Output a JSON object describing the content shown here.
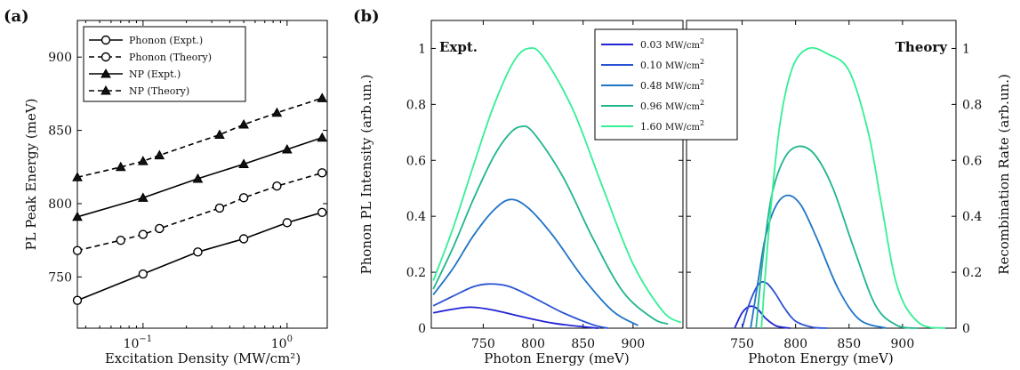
{
  "chart_data": [
    {
      "type": "line",
      "panel_label": "(a)",
      "xlabel": "Excitation Density (MW/cm²)",
      "ylabel": "PL Peak Energy (meV)",
      "xscale": "log",
      "xlim": [
        0.035,
        1.9
      ],
      "ylim": [
        715,
        925
      ],
      "xticks": [
        {
          "v": 0.1,
          "base": "10",
          "exp": "−1"
        },
        {
          "v": 1,
          "base": "10",
          "exp": "0"
        }
      ],
      "yticks": [
        750,
        800,
        850,
        900
      ],
      "legend_position": "top-left",
      "series": [
        {
          "name": "Phonon (Expt.)",
          "dash": false,
          "marker": "circle",
          "color": "#000000",
          "x": [
            0.035,
            0.1,
            0.24,
            0.5,
            1.0,
            1.75
          ],
          "y": [
            734,
            752,
            767,
            776,
            787,
            794
          ]
        },
        {
          "name": "Phonon (Theory)",
          "dash": true,
          "marker": "circle",
          "color": "#000000",
          "x": [
            0.035,
            0.07,
            0.1,
            0.13,
            0.34,
            0.5,
            0.85,
            1.75
          ],
          "y": [
            768,
            775,
            779,
            783,
            797,
            804,
            812,
            821
          ]
        },
        {
          "name": "NP (Expt.)",
          "dash": false,
          "marker": "triangle",
          "color": "#000000",
          "x": [
            0.035,
            0.1,
            0.24,
            0.5,
            1.0,
            1.75
          ],
          "y": [
            791,
            804,
            817,
            827,
            837,
            845
          ]
        },
        {
          "name": "NP (Theory)",
          "dash": true,
          "marker": "triangle",
          "color": "#000000",
          "x": [
            0.035,
            0.07,
            0.1,
            0.13,
            0.34,
            0.5,
            0.85,
            1.75
          ],
          "y": [
            818,
            825,
            829,
            833,
            847,
            854,
            862,
            872
          ]
        }
      ]
    },
    {
      "type": "line",
      "panel_label": "(b)",
      "xlabel_left": "Photon Energy (meV)",
      "xlabel_right": "Photon Energy (meV)",
      "ylabel_left": "Phonon PL Intensity (arb.un.)",
      "ylabel_right": "Recombination Rate (arb.un.)",
      "label_left": "Expt.",
      "label_right": "Theory",
      "left_xlim": [
        698,
        950
      ],
      "left_xticks": [
        750,
        800,
        850,
        900
      ],
      "right_xlim": [
        698,
        950
      ],
      "right_xticks": [
        750,
        800,
        850,
        900
      ],
      "ylim": [
        0,
        1.1
      ],
      "yticks": [
        0,
        0.2,
        0.4,
        0.6,
        0.8,
        1
      ],
      "ytick_labels": [
        "0",
        "0.2",
        "0.4",
        "0.6",
        "0.8",
        "1"
      ],
      "legend_position": "top-center",
      "legend": [
        {
          "num": "0.03",
          "unit": "MW/cm",
          "sup": "2",
          "color": "#2323d6"
        },
        {
          "num": "0.10",
          "unit": "MW/cm",
          "sup": "2",
          "color": "#2a52d4"
        },
        {
          "num": "0.48",
          "unit": "MW/cm",
          "sup": "2",
          "color": "#1f74c6"
        },
        {
          "num": "0.96",
          "unit": "MW/cm",
          "sup": "2",
          "color": "#1fb58e"
        },
        {
          "num": "1.60",
          "unit": "MW/cm",
          "sup": "2",
          "color": "#33f094"
        }
      ],
      "experiment": [
        {
          "x": [
            700,
            720,
            737,
            760,
            790,
            820,
            850,
            865
          ],
          "y": [
            0.055,
            0.068,
            0.075,
            0.065,
            0.04,
            0.018,
            0.005,
            0.0
          ]
        },
        {
          "x": [
            700,
            720,
            740,
            755,
            775,
            800,
            830,
            860,
            875
          ],
          "y": [
            0.08,
            0.115,
            0.148,
            0.158,
            0.15,
            0.11,
            0.055,
            0.012,
            0.0
          ]
        },
        {
          "x": [
            700,
            720,
            740,
            760,
            777,
            795,
            820,
            850,
            880,
            905
          ],
          "y": [
            0.12,
            0.215,
            0.33,
            0.42,
            0.46,
            0.43,
            0.33,
            0.18,
            0.06,
            0.01
          ]
        },
        {
          "x": [
            700,
            720,
            740,
            760,
            775,
            787,
            800,
            830,
            860,
            890,
            920,
            935
          ],
          "y": [
            0.14,
            0.29,
            0.46,
            0.61,
            0.69,
            0.72,
            0.7,
            0.54,
            0.32,
            0.13,
            0.035,
            0.015
          ]
        },
        {
          "x": [
            700,
            720,
            740,
            760,
            780,
            795,
            810,
            840,
            870,
            900,
            930,
            948
          ],
          "y": [
            0.17,
            0.36,
            0.58,
            0.79,
            0.95,
            1.0,
            0.97,
            0.78,
            0.5,
            0.23,
            0.06,
            0.02
          ]
        }
      ],
      "theory": [
        {
          "x": [
            743,
            750,
            757,
            764,
            772,
            782,
            795
          ],
          "y": [
            0.0,
            0.055,
            0.078,
            0.07,
            0.035,
            0.008,
            0.0
          ]
        },
        {
          "x": [
            750,
            757,
            765,
            772,
            780,
            790,
            800,
            815,
            830
          ],
          "y": [
            0.0,
            0.09,
            0.155,
            0.163,
            0.13,
            0.07,
            0.025,
            0.004,
            0.0
          ]
        },
        {
          "x": [
            758,
            765,
            772,
            782,
            793,
            805,
            820,
            840,
            860,
            885
          ],
          "y": [
            0.0,
            0.17,
            0.33,
            0.44,
            0.475,
            0.44,
            0.32,
            0.14,
            0.03,
            0.0
          ]
        },
        {
          "x": [
            763,
            770,
            778,
            790,
            803,
            818,
            835,
            855,
            875,
            895,
            915
          ],
          "y": [
            0.0,
            0.27,
            0.48,
            0.61,
            0.65,
            0.62,
            0.5,
            0.28,
            0.08,
            0.01,
            0.0
          ]
        },
        {
          "x": [
            768,
            775,
            785,
            797,
            812,
            830,
            850,
            868,
            880,
            895,
            915,
            940
          ],
          "y": [
            0.0,
            0.35,
            0.72,
            0.93,
            1.0,
            0.98,
            0.92,
            0.7,
            0.45,
            0.15,
            0.02,
            0.0
          ]
        }
      ]
    }
  ]
}
